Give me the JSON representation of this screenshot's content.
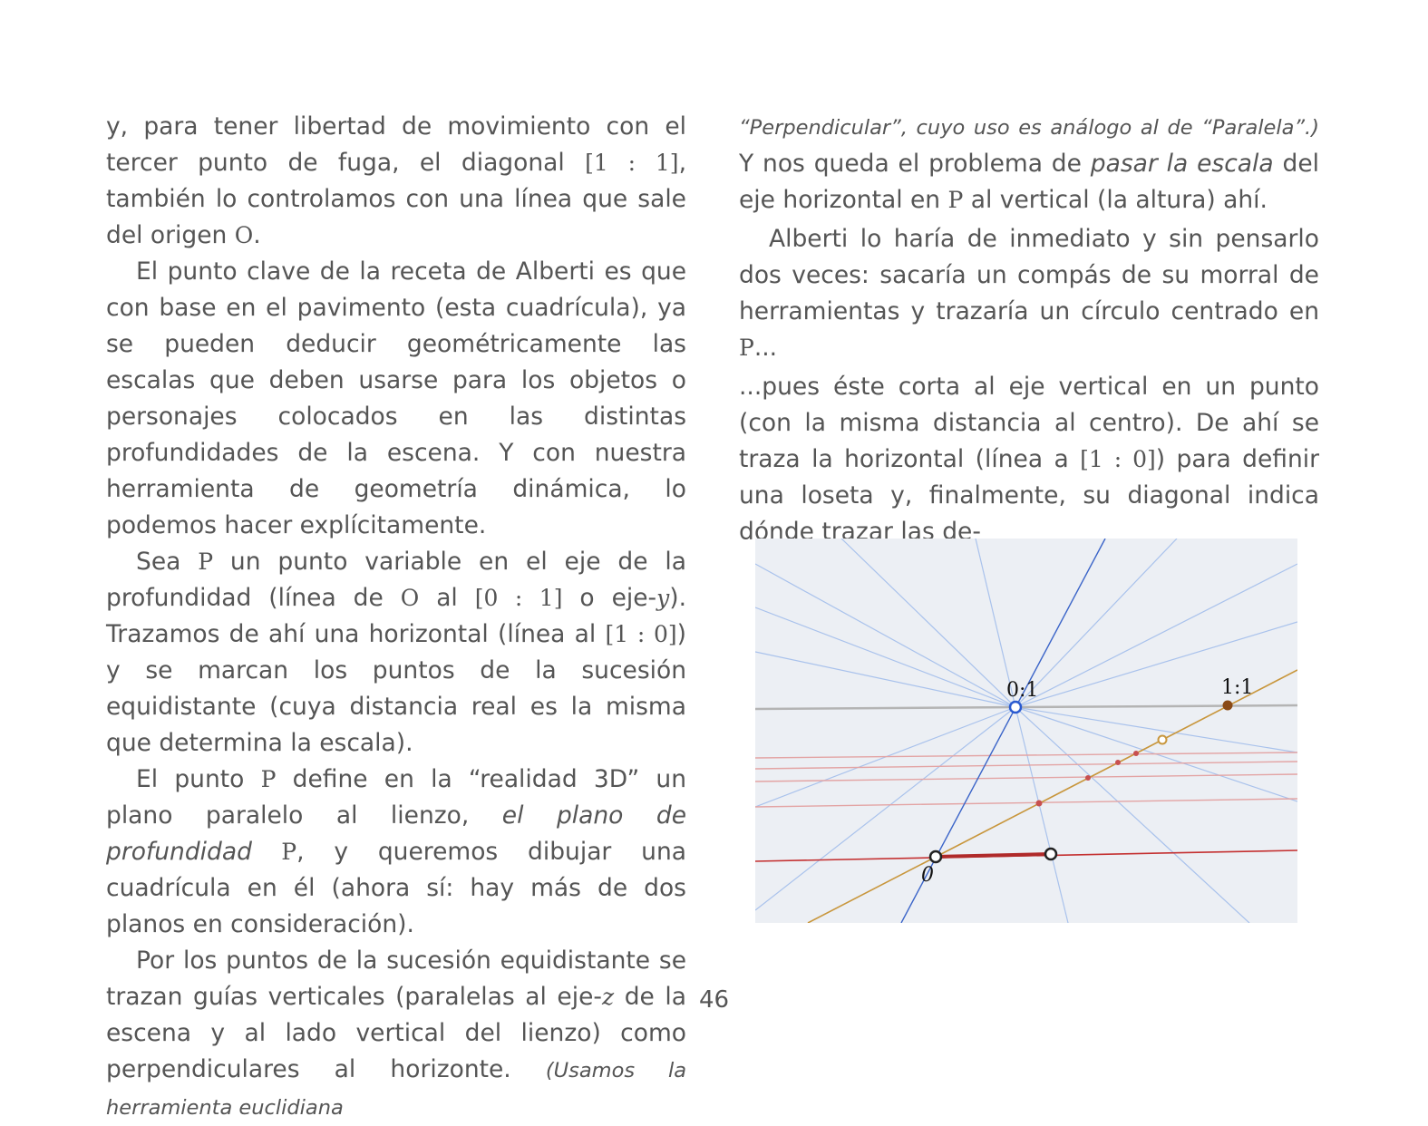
{
  "left_column": {
    "p1": {
      "a": "y, para tener libertad de movimiento con el tercer punto de fuga, el diagonal ",
      "m1": "[1 : 1]",
      "b": ", también lo controlamos con una línea que sale del origen ",
      "m2": "O",
      "c": "."
    },
    "p2": "El punto clave de la receta de Alberti es que con base en el pavimento (esta cuadrícula), ya se pueden deducir geométricamente las escalas que deben usarse para los objetos o personajes colocados en las distintas profundidades de la escena. Y con nuestra herramienta de geometría dinámica, lo podemos hacer explícitamente.",
    "p3": {
      "a": "Sea ",
      "m1": "P",
      "b": " un punto variable en el eje de la profundidad (línea de ",
      "m2": "O",
      "c": " al ",
      "m3": "[0 : 1]",
      "d": " o eje-",
      "m4": "y",
      "e": "). Trazamos de ahí una horizontal (línea al ",
      "m5": "[1 : 0]",
      "f": ") y se marcan los puntos de la sucesión equidistante (cuya distancia real es la misma que determina la escala)."
    },
    "p4": {
      "a": "El punto ",
      "m1": "P",
      "b": " define en la “realidad 3D” un plano paralelo al lienzo, ",
      "i1": "el plano de profundidad",
      "m2": " P",
      "c": ", y queremos dibujar una cuadrícula en él (ahora sí: hay más de dos planos en consideración)."
    },
    "p5": {
      "a": "Por los puntos de la sucesión equidistante se trazan guías verticales (paralelas al eje-",
      "m1": "z",
      "b": " de la escena y al lado vertical del lienzo) como perpendiculares al horizonte. ",
      "i1": "(Usamos la herramienta euclidiana"
    }
  },
  "right_column": {
    "p1": {
      "i1": "“Perpendicular”, cuyo uso es análogo al de “Paralela”.)",
      "a": " Y nos queda el problema de ",
      "i2": "pasar la escala",
      "b": " del eje horizontal en ",
      "m1": "P",
      "c": " al vertical (la altura) ahí."
    },
    "p2": {
      "a": "Alberti lo haría de inmediato y sin pensarlo dos veces: sacaría un compás de su morral de herramientas y trazaría un círculo centrado en ",
      "m1": "P",
      "b": "..."
    },
    "p3": {
      "a": "...pues éste corta al eje vertical en un punto (con la misma distancia al centro). De ahí se traza la horizontal (línea a ",
      "m1": "[1 : 0]",
      "b": ") para definir una loseta y, finalmente, su diagonal indica dónde trazar las de-"
    }
  },
  "figure": {
    "label_01": "0:1",
    "label_11": "1:1",
    "label_origin": "0",
    "colors": {
      "background": "#eceff4",
      "blue_rays": "#a9c2ec",
      "blue_axis": "#3a64c8",
      "horizon": "#b4b4b4",
      "red_lines": "#e3a4a4",
      "red_base": "#c43030",
      "orange_diagonal": "#c8963c",
      "orange_point": "#8a4a16"
    }
  },
  "page_number": "46"
}
